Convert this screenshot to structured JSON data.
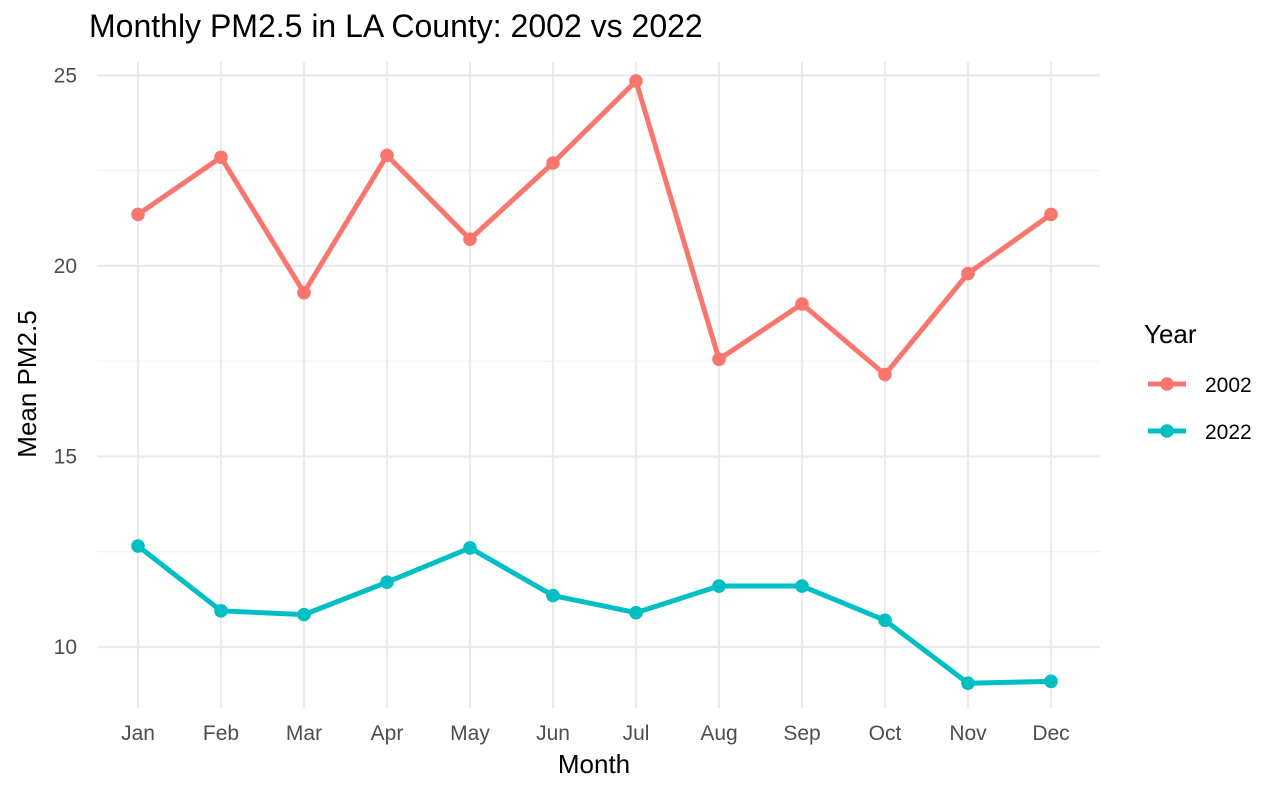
{
  "chart_data": {
    "type": "line",
    "title": "Monthly PM2.5 in LA County: 2002 vs 2022",
    "xlabel": "Month",
    "ylabel": "Mean PM2.5",
    "categories": [
      "Jan",
      "Feb",
      "Mar",
      "Apr",
      "May",
      "Jun",
      "Jul",
      "Aug",
      "Sep",
      "Oct",
      "Nov",
      "Dec"
    ],
    "ylim": [
      8.4,
      25.35
    ],
    "yticks": [
      10,
      15,
      20,
      25
    ],
    "grid": true,
    "legend": {
      "title": "Year",
      "position": "right"
    },
    "series": [
      {
        "name": "2002",
        "color": "#f8766d",
        "values": [
          21.35,
          22.85,
          19.3,
          22.9,
          20.7,
          22.7,
          24.85,
          17.55,
          19.0,
          17.15,
          19.8,
          21.35
        ]
      },
      {
        "name": "2022",
        "color": "#00bfc4",
        "values": [
          12.65,
          10.95,
          10.85,
          11.7,
          12.6,
          11.35,
          10.9,
          11.6,
          11.6,
          10.7,
          9.05,
          9.1
        ]
      }
    ]
  }
}
